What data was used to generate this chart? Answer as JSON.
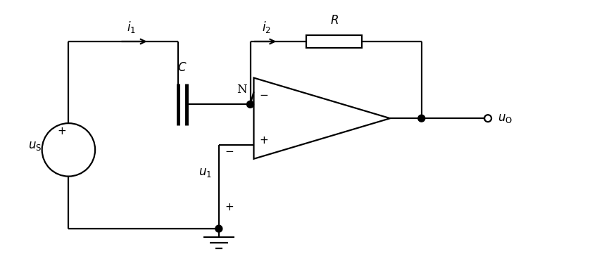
{
  "background": "#ffffff",
  "line_color": "#000000",
  "line_width": 1.6,
  "fig_width": 8.58,
  "fig_height": 3.88,
  "dpi": 100
}
